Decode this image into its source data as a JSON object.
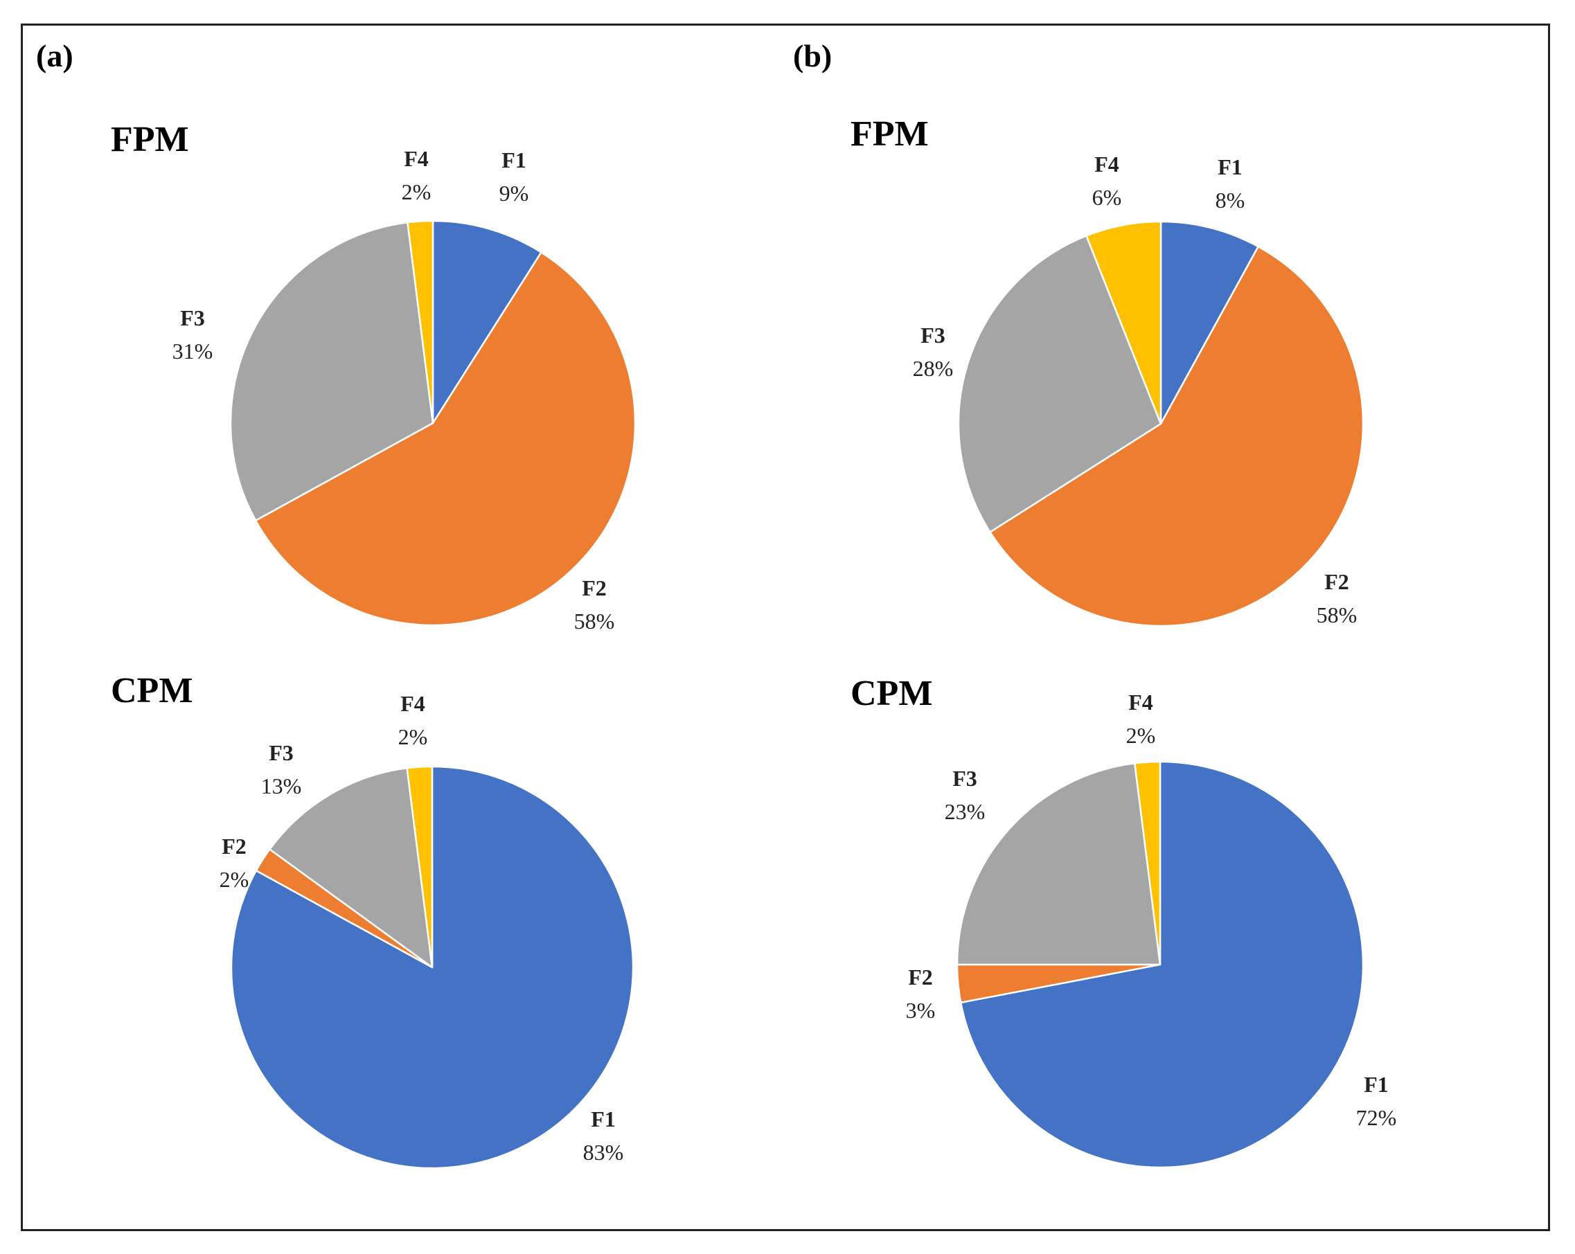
{
  "colors": {
    "F1": "#4472C4",
    "F2": "#ED7D31",
    "F3": "#A5A5A5",
    "F4": "#FFC000"
  },
  "panels": [
    {
      "label": "(a)"
    },
    {
      "label": "(b)"
    }
  ],
  "chart_data": [
    {
      "type": "pie",
      "panel": "(a)",
      "title": "FPM",
      "categories": [
        "F1",
        "F2",
        "F3",
        "F4"
      ],
      "values": [
        9,
        58,
        31,
        2
      ],
      "value_labels": [
        "9%",
        "58%",
        "31%",
        "2%"
      ]
    },
    {
      "type": "pie",
      "panel": "(a)",
      "title": "CPM",
      "categories": [
        "F1",
        "F2",
        "F3",
        "F4"
      ],
      "values": [
        83,
        2,
        13,
        2
      ],
      "value_labels": [
        "83%",
        "2%",
        "13%",
        "2%"
      ]
    },
    {
      "type": "pie",
      "panel": "(b)",
      "title": "FPM",
      "categories": [
        "F1",
        "F2",
        "F3",
        "F4"
      ],
      "values": [
        8,
        58,
        28,
        6
      ],
      "value_labels": [
        "8%",
        "58%",
        "28%",
        "6%"
      ]
    },
    {
      "type": "pie",
      "panel": "(b)",
      "title": "CPM",
      "categories": [
        "F1",
        "F2",
        "F3",
        "F4"
      ],
      "values": [
        72,
        3,
        23,
        2
      ],
      "value_labels": [
        "72%",
        "3%",
        "23%",
        "2%"
      ]
    }
  ]
}
